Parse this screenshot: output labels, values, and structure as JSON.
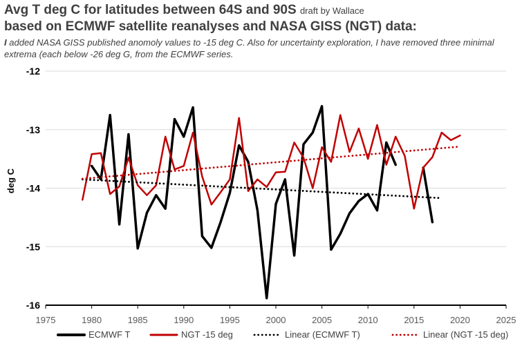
{
  "title": {
    "line1": "Avg T deg C for latitudes between 64S and 90S",
    "line1_small": "draft by Wallace",
    "line2": "based on ECMWF satellite reanalyses and NASA GISS (NGT) data:",
    "note_bold": "I",
    "note": "added NASA GISS published anomoly values to -15 deg C.  Also for uncertainty exploration, I have removed three minimal extrema (each below -26 deg G, from the ECMWF series."
  },
  "chart_data": {
    "type": "line",
    "ylabel": "deg C",
    "xlim": [
      1975,
      2025
    ],
    "ylim": [
      -16,
      -12
    ],
    "xticks": [
      "1975",
      "1980",
      "1985",
      "1990",
      "1995",
      "2000",
      "2005",
      "2010",
      "2015",
      "2020",
      "2025"
    ],
    "yticks": [
      "-12",
      "-13",
      "-14",
      "-15",
      "-16"
    ],
    "grid": "horizontal",
    "legend_position": "bottom",
    "series": [
      {
        "name": "ECMWF T",
        "color": "#000000",
        "style": "solid",
        "points": [
          [
            1980,
            -13.62
          ],
          [
            1981,
            -13.85
          ],
          [
            1982,
            -12.75
          ],
          [
            1983,
            -14.62
          ],
          [
            1984,
            -13.08
          ],
          [
            1985,
            -15.03
          ],
          [
            1986,
            -14.42
          ],
          [
            1987,
            -14.12
          ],
          [
            1988,
            -14.35
          ],
          [
            1989,
            -12.82
          ],
          [
            1990,
            -13.12
          ],
          [
            1991,
            -12.62
          ],
          [
            1992,
            -14.82
          ],
          [
            1993,
            -15.02
          ],
          [
            1994,
            -14.58
          ],
          [
            1995,
            -14.08
          ],
          [
            1996,
            -13.27
          ],
          [
            1997,
            -13.55
          ],
          [
            1998,
            -14.38
          ],
          [
            1999,
            -15.88
          ],
          [
            2000,
            -14.27
          ],
          [
            2001,
            -13.85
          ],
          [
            2002,
            -15.15
          ],
          [
            2003,
            -13.25
          ],
          [
            2004,
            -13.05
          ],
          [
            2005,
            -12.6
          ],
          [
            2006,
            -15.05
          ],
          [
            2007,
            -14.78
          ],
          [
            2008,
            -14.43
          ],
          [
            2009,
            -14.22
          ],
          [
            2010,
            -14.1
          ],
          [
            2011,
            -14.38
          ],
          [
            2012,
            -13.22
          ],
          [
            2013,
            -13.6
          ],
          null,
          [
            2016,
            -13.65
          ],
          [
            2017,
            -14.58
          ]
        ]
      },
      {
        "name": "NGT -15 deg",
        "color": "#c00000",
        "style": "solid",
        "points": [
          [
            1979,
            -14.2
          ],
          [
            1980,
            -13.42
          ],
          [
            1981,
            -13.4
          ],
          [
            1982,
            -14.1
          ],
          [
            1983,
            -13.97
          ],
          [
            1984,
            -13.48
          ],
          [
            1985,
            -13.95
          ],
          [
            1986,
            -14.12
          ],
          [
            1987,
            -13.95
          ],
          [
            1988,
            -13.12
          ],
          [
            1989,
            -13.68
          ],
          [
            1990,
            -13.62
          ],
          [
            1991,
            -13.05
          ],
          [
            1992,
            -13.8
          ],
          [
            1993,
            -14.28
          ],
          [
            1994,
            -14.07
          ],
          [
            1995,
            -13.85
          ],
          [
            1996,
            -12.8
          ],
          [
            1997,
            -14.05
          ],
          [
            1998,
            -13.85
          ],
          [
            1999,
            -13.98
          ],
          [
            2000,
            -13.73
          ],
          [
            2001,
            -13.72
          ],
          [
            2002,
            -13.22
          ],
          [
            2003,
            -13.48
          ],
          [
            2004,
            -14.0
          ],
          [
            2005,
            -13.3
          ],
          [
            2006,
            -13.55
          ],
          [
            2007,
            -12.75
          ],
          [
            2008,
            -13.38
          ],
          [
            2009,
            -12.98
          ],
          [
            2010,
            -13.5
          ],
          [
            2011,
            -12.92
          ],
          [
            2012,
            -13.6
          ],
          [
            2013,
            -13.12
          ],
          [
            2014,
            -13.45
          ],
          [
            2015,
            -14.35
          ],
          [
            2016,
            -13.65
          ],
          [
            2017,
            -13.47
          ],
          [
            2018,
            -13.05
          ],
          [
            2019,
            -13.18
          ],
          [
            2020,
            -13.1
          ]
        ]
      },
      {
        "name": "Linear (ECMWF T)",
        "color": "#000000",
        "style": "dotted",
        "points": [
          [
            1979,
            -13.85
          ],
          [
            2018,
            -14.17
          ]
        ]
      },
      {
        "name": "Linear (NGT -15 deg)",
        "color": "#c00000",
        "style": "dotted",
        "points": [
          [
            1979,
            -13.84
          ],
          [
            2020,
            -13.29
          ]
        ]
      }
    ]
  }
}
